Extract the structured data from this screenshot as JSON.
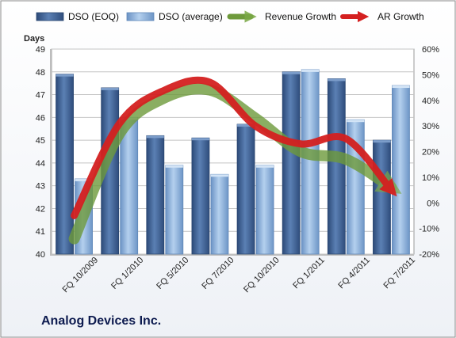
{
  "company": "Analog Devices Inc.",
  "chart_data": {
    "type": "bar",
    "categories": [
      "FQ 10/2009",
      "FQ 1/2010",
      "FQ 5/2010",
      "FQ 7/2010",
      "FQ 10/2010",
      "FQ 1/2011",
      "FQ 4/2011",
      "FQ 7/2011"
    ],
    "series": [
      {
        "name": "DSO (EOQ)",
        "type": "bar",
        "axis": "left",
        "color": "#4a6fa0",
        "values": [
          47.9,
          47.3,
          45.2,
          45.1,
          45.7,
          48.0,
          47.7,
          45.0
        ]
      },
      {
        "name": "DSO (average)",
        "type": "bar",
        "axis": "left",
        "color": "#8fb2d8",
        "values": [
          43.3,
          46.0,
          43.9,
          43.5,
          43.9,
          48.1,
          45.9,
          47.4
        ]
      },
      {
        "name": "Revenue Growth",
        "type": "line",
        "axis": "right",
        "color": "#6e9a3c",
        "values": [
          -14,
          27,
          41,
          44,
          33,
          20,
          17,
          6
        ]
      },
      {
        "name": "AR Growth",
        "type": "line",
        "axis": "right",
        "color": "#d42020",
        "values": [
          -5,
          31,
          44,
          47,
          30,
          23,
          25,
          5
        ]
      }
    ],
    "ylabel": "Days",
    "ylim": [
      40,
      49
    ],
    "yticks": [
      40,
      41,
      42,
      43,
      44,
      45,
      46,
      47,
      48,
      49
    ],
    "y2lim": [
      -20,
      60
    ],
    "y2ticks": [
      "-20%",
      "-10%",
      "0%",
      "10%",
      "20%",
      "30%",
      "40%",
      "50%",
      "60%"
    ],
    "legend_position": "top",
    "grid": true
  }
}
